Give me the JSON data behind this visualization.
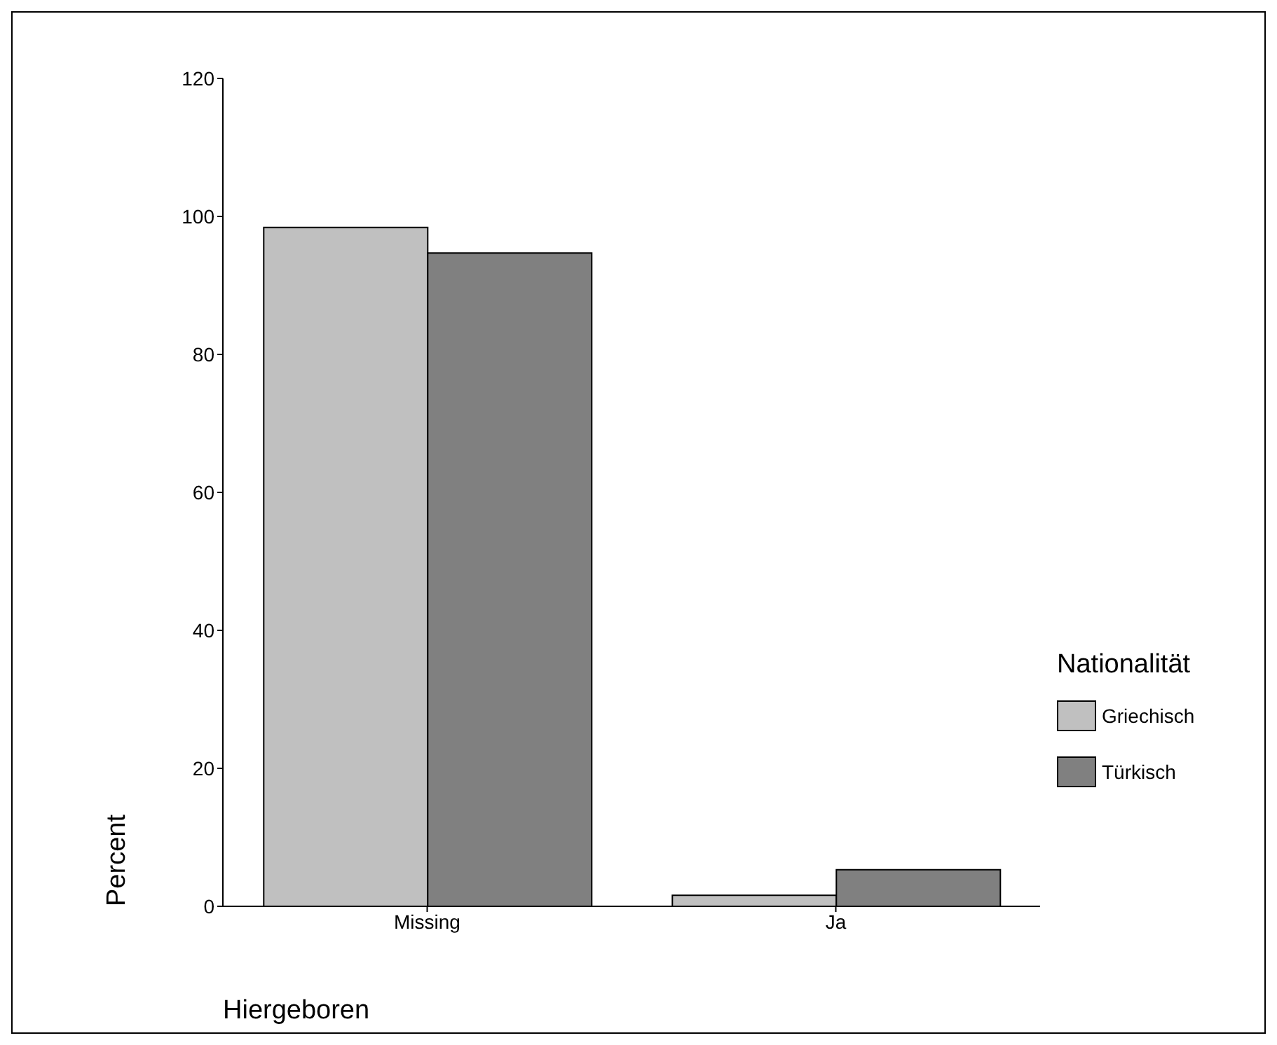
{
  "chart_data": {
    "type": "bar",
    "xlabel": "Hiergeboren",
    "ylabel": "Percent",
    "legend_title": "Nationalität",
    "categories": [
      "Missing",
      "Ja"
    ],
    "series": [
      {
        "name": "Griechisch",
        "color": "#c0c0c0",
        "values": [
          98.4,
          1.6
        ]
      },
      {
        "name": "Türkisch",
        "color": "#808080",
        "values": [
          94.7,
          5.3
        ]
      }
    ],
    "ylim": [
      0,
      120
    ],
    "yticks": [
      0,
      20,
      40,
      60,
      80,
      100,
      120
    ],
    "grid": false,
    "legend": "right"
  }
}
